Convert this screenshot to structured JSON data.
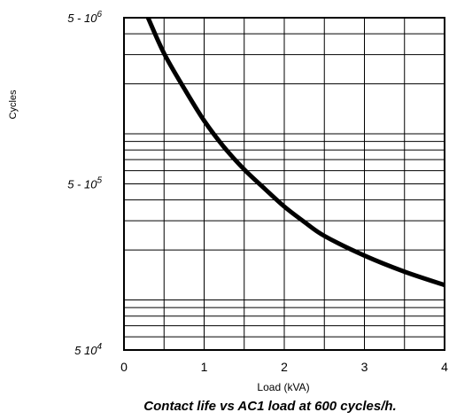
{
  "chart_data": {
    "type": "line",
    "title": "Contact life vs AC1 load at 600 cycles/h.",
    "xlabel": "Load (kVA)",
    "ylabel": "Cycles",
    "xlim": [
      0,
      4
    ],
    "ylim": [
      50000,
      5000000
    ],
    "y_scale": "log",
    "grid": true,
    "x_ticks": [
      "0",
      "1",
      "2",
      "3",
      "4"
    ],
    "y_ticks": [
      {
        "value": 5000000,
        "label_base": "5 - 10",
        "label_exp": "6"
      },
      {
        "value": 500000,
        "label_base": "5 - 10",
        "label_exp": "5"
      },
      {
        "value": 50000,
        "label_base": "5   10",
        "label_exp": "4"
      }
    ],
    "series": [
      {
        "x": [
          0.3,
          0.5,
          0.75,
          1.0,
          1.25,
          1.5,
          1.75,
          2.0,
          2.25,
          2.5,
          3.0,
          3.5,
          4.0
        ],
        "y": [
          5000000,
          3050000,
          1880000,
          1200000,
          830000,
          610000,
          470000,
          365000,
          295000,
          243000,
          185000,
          148000,
          123000
        ],
        "color": "#000000"
      }
    ]
  }
}
